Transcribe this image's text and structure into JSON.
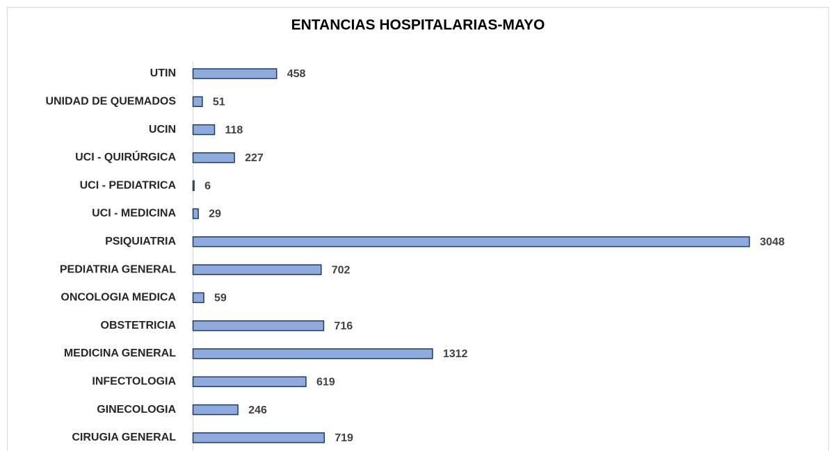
{
  "chart_data": {
    "type": "barh",
    "title": "ENTANCIAS HOSPITALARIAS-MAYO",
    "categories": [
      "UTIN",
      "UNIDAD DE QUEMADOS",
      "UCIN",
      "UCI - QUIRÚRGICA",
      "UCI - PEDIATRICA",
      "UCI - MEDICINA",
      "PSIQUIATRIA",
      "PEDIATRIA GENERAL",
      "ONCOLOGIA MEDICA",
      "OBSTETRICIA",
      "MEDICINA GENERAL",
      "INFECTOLOGIA",
      "GINECOLOGIA",
      "CIRUGIA GENERAL"
    ],
    "values": [
      458,
      51,
      118,
      227,
      6,
      29,
      3048,
      702,
      59,
      716,
      1312,
      619,
      246,
      719
    ],
    "color": "#8faadc"
  }
}
